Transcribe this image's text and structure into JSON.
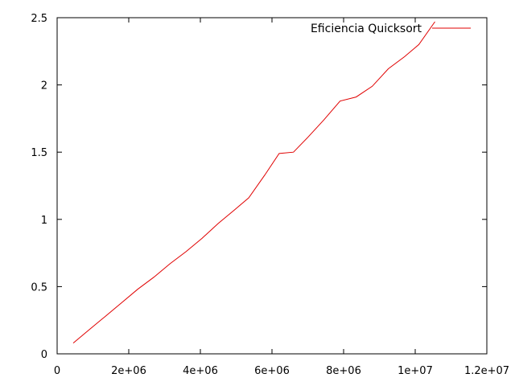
{
  "chart_data": {
    "type": "line",
    "title": "",
    "xlabel": "",
    "ylabel": "",
    "xlim": [
      0,
      12000000
    ],
    "ylim": [
      0,
      2.5
    ],
    "x_ticks": [
      {
        "value": 0,
        "label": "0"
      },
      {
        "value": 2000000,
        "label": "2e+06"
      },
      {
        "value": 4000000,
        "label": "4e+06"
      },
      {
        "value": 6000000,
        "label": "6e+06"
      },
      {
        "value": 8000000,
        "label": "8e+06"
      },
      {
        "value": 10000000,
        "label": "1e+07"
      },
      {
        "value": 12000000,
        "label": "1.2e+07"
      }
    ],
    "y_ticks": [
      {
        "value": 0,
        "label": "0"
      },
      {
        "value": 0.5,
        "label": "0.5"
      },
      {
        "value": 1,
        "label": "1"
      },
      {
        "value": 1.5,
        "label": "1.5"
      },
      {
        "value": 2,
        "label": "2"
      },
      {
        "value": 2.5,
        "label": "2.5"
      }
    ],
    "grid": false,
    "legend_position": "top-right",
    "series": [
      {
        "name": "Eficiencia Quicksort",
        "color": "#e00000",
        "x": [
          450000,
          900000,
          1350000,
          1800000,
          2250000,
          2700000,
          3150000,
          3600000,
          4050000,
          4500000,
          4950000,
          5350000,
          5800000,
          6200000,
          6600000,
          7000000,
          7450000,
          7900000,
          8350000,
          8800000,
          9250000,
          9700000,
          10100000,
          10550000
        ],
        "y": [
          0.08,
          0.18,
          0.28,
          0.38,
          0.48,
          0.57,
          0.67,
          0.76,
          0.86,
          0.97,
          1.07,
          1.16,
          1.33,
          1.49,
          1.5,
          1.61,
          1.74,
          1.88,
          1.91,
          1.99,
          2.12,
          2.21,
          2.3,
          2.47
        ]
      }
    ]
  }
}
